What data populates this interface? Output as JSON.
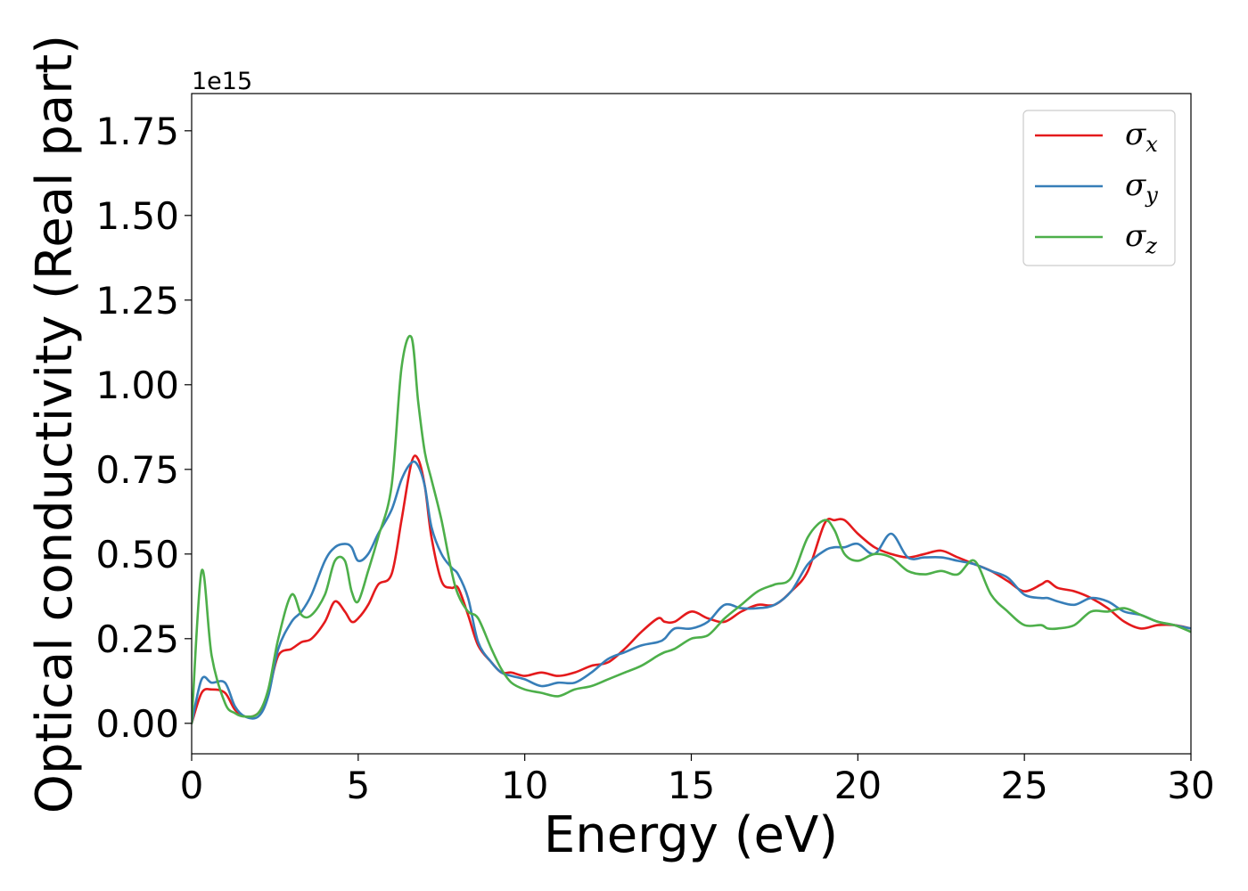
{
  "chart_data": {
    "type": "line",
    "xlabel": "Energy (eV)",
    "ylabel": "Optical conductivity (Real part)",
    "y_offset_label": "1e15",
    "xlim": [
      0,
      30
    ],
    "ylim": [
      -0.09,
      1.86
    ],
    "x_ticks": [
      0,
      5,
      10,
      15,
      20,
      25,
      30
    ],
    "x_tick_labels": [
      "0",
      "5",
      "10",
      "15",
      "20",
      "25",
      "30"
    ],
    "y_ticks": [
      0.0,
      0.25,
      0.5,
      0.75,
      1.0,
      1.25,
      1.5,
      1.75
    ],
    "y_tick_labels": [
      "0.00",
      "0.25",
      "0.50",
      "0.75",
      "1.00",
      "1.25",
      "1.50",
      "1.75"
    ],
    "grid": false,
    "legend_position": "top-right",
    "x": [
      0,
      0.3,
      0.6,
      1.0,
      1.3,
      1.6,
      2.0,
      2.3,
      2.6,
      3.0,
      3.3,
      3.6,
      4.0,
      4.3,
      4.6,
      4.8,
      5.0,
      5.3,
      5.6,
      6.0,
      6.3,
      6.6,
      6.8,
      7.0,
      7.2,
      7.5,
      7.8,
      8.0,
      8.3,
      8.6,
      9.0,
      9.3,
      9.6,
      10.0,
      10.5,
      11.0,
      11.5,
      12.0,
      12.5,
      13.0,
      13.5,
      14.0,
      14.2,
      14.5,
      15.0,
      15.5,
      16.0,
      16.5,
      17.0,
      17.5,
      18.0,
      18.5,
      19.0,
      19.3,
      19.6,
      20.0,
      20.5,
      21.0,
      21.5,
      22.0,
      22.5,
      23.0,
      23.5,
      24.0,
      24.5,
      25.0,
      25.5,
      25.7,
      26.0,
      26.5,
      27.0,
      27.5,
      28.0,
      28.5,
      29.0,
      29.5,
      30.0
    ],
    "series": [
      {
        "name": "σx",
        "subscript": "x",
        "color": "#e41a1c",
        "values": [
          0.0,
          0.09,
          0.1,
          0.09,
          0.04,
          0.02,
          0.03,
          0.09,
          0.2,
          0.22,
          0.24,
          0.25,
          0.3,
          0.36,
          0.33,
          0.3,
          0.31,
          0.35,
          0.41,
          0.44,
          0.6,
          0.77,
          0.78,
          0.7,
          0.55,
          0.42,
          0.4,
          0.4,
          0.32,
          0.23,
          0.18,
          0.15,
          0.15,
          0.14,
          0.15,
          0.14,
          0.15,
          0.17,
          0.18,
          0.22,
          0.27,
          0.31,
          0.3,
          0.3,
          0.33,
          0.31,
          0.3,
          0.33,
          0.35,
          0.35,
          0.39,
          0.45,
          0.59,
          0.6,
          0.6,
          0.56,
          0.52,
          0.5,
          0.49,
          0.5,
          0.51,
          0.49,
          0.47,
          0.45,
          0.42,
          0.39,
          0.41,
          0.42,
          0.4,
          0.39,
          0.37,
          0.34,
          0.3,
          0.28,
          0.29,
          0.29,
          0.28
        ]
      },
      {
        "name": "σy",
        "subscript": "y",
        "color": "#377eb8",
        "values": [
          0.0,
          0.13,
          0.12,
          0.12,
          0.05,
          0.02,
          0.02,
          0.08,
          0.22,
          0.3,
          0.33,
          0.38,
          0.48,
          0.52,
          0.53,
          0.52,
          0.48,
          0.5,
          0.56,
          0.63,
          0.72,
          0.77,
          0.76,
          0.7,
          0.58,
          0.5,
          0.46,
          0.44,
          0.37,
          0.24,
          0.18,
          0.15,
          0.14,
          0.13,
          0.11,
          0.12,
          0.12,
          0.15,
          0.19,
          0.21,
          0.23,
          0.24,
          0.25,
          0.28,
          0.28,
          0.3,
          0.35,
          0.34,
          0.34,
          0.35,
          0.39,
          0.47,
          0.51,
          0.52,
          0.52,
          0.53,
          0.5,
          0.56,
          0.49,
          0.49,
          0.49,
          0.48,
          0.47,
          0.45,
          0.43,
          0.38,
          0.37,
          0.37,
          0.36,
          0.35,
          0.37,
          0.36,
          0.33,
          0.32,
          0.3,
          0.29,
          0.28
        ]
      },
      {
        "name": "σz",
        "subscript": "z",
        "color": "#4daf4a",
        "values": [
          0.0,
          0.45,
          0.2,
          0.06,
          0.03,
          0.02,
          0.03,
          0.1,
          0.25,
          0.38,
          0.32,
          0.32,
          0.38,
          0.48,
          0.48,
          0.39,
          0.36,
          0.45,
          0.55,
          0.7,
          1.05,
          1.14,
          0.95,
          0.8,
          0.72,
          0.6,
          0.45,
          0.38,
          0.33,
          0.31,
          0.22,
          0.16,
          0.12,
          0.1,
          0.09,
          0.08,
          0.1,
          0.11,
          0.13,
          0.15,
          0.17,
          0.2,
          0.21,
          0.22,
          0.25,
          0.26,
          0.31,
          0.35,
          0.39,
          0.41,
          0.43,
          0.55,
          0.6,
          0.57,
          0.5,
          0.48,
          0.5,
          0.49,
          0.45,
          0.44,
          0.45,
          0.44,
          0.48,
          0.38,
          0.33,
          0.29,
          0.29,
          0.28,
          0.28,
          0.29,
          0.33,
          0.33,
          0.34,
          0.32,
          0.3,
          0.29,
          0.27
        ]
      }
    ]
  }
}
